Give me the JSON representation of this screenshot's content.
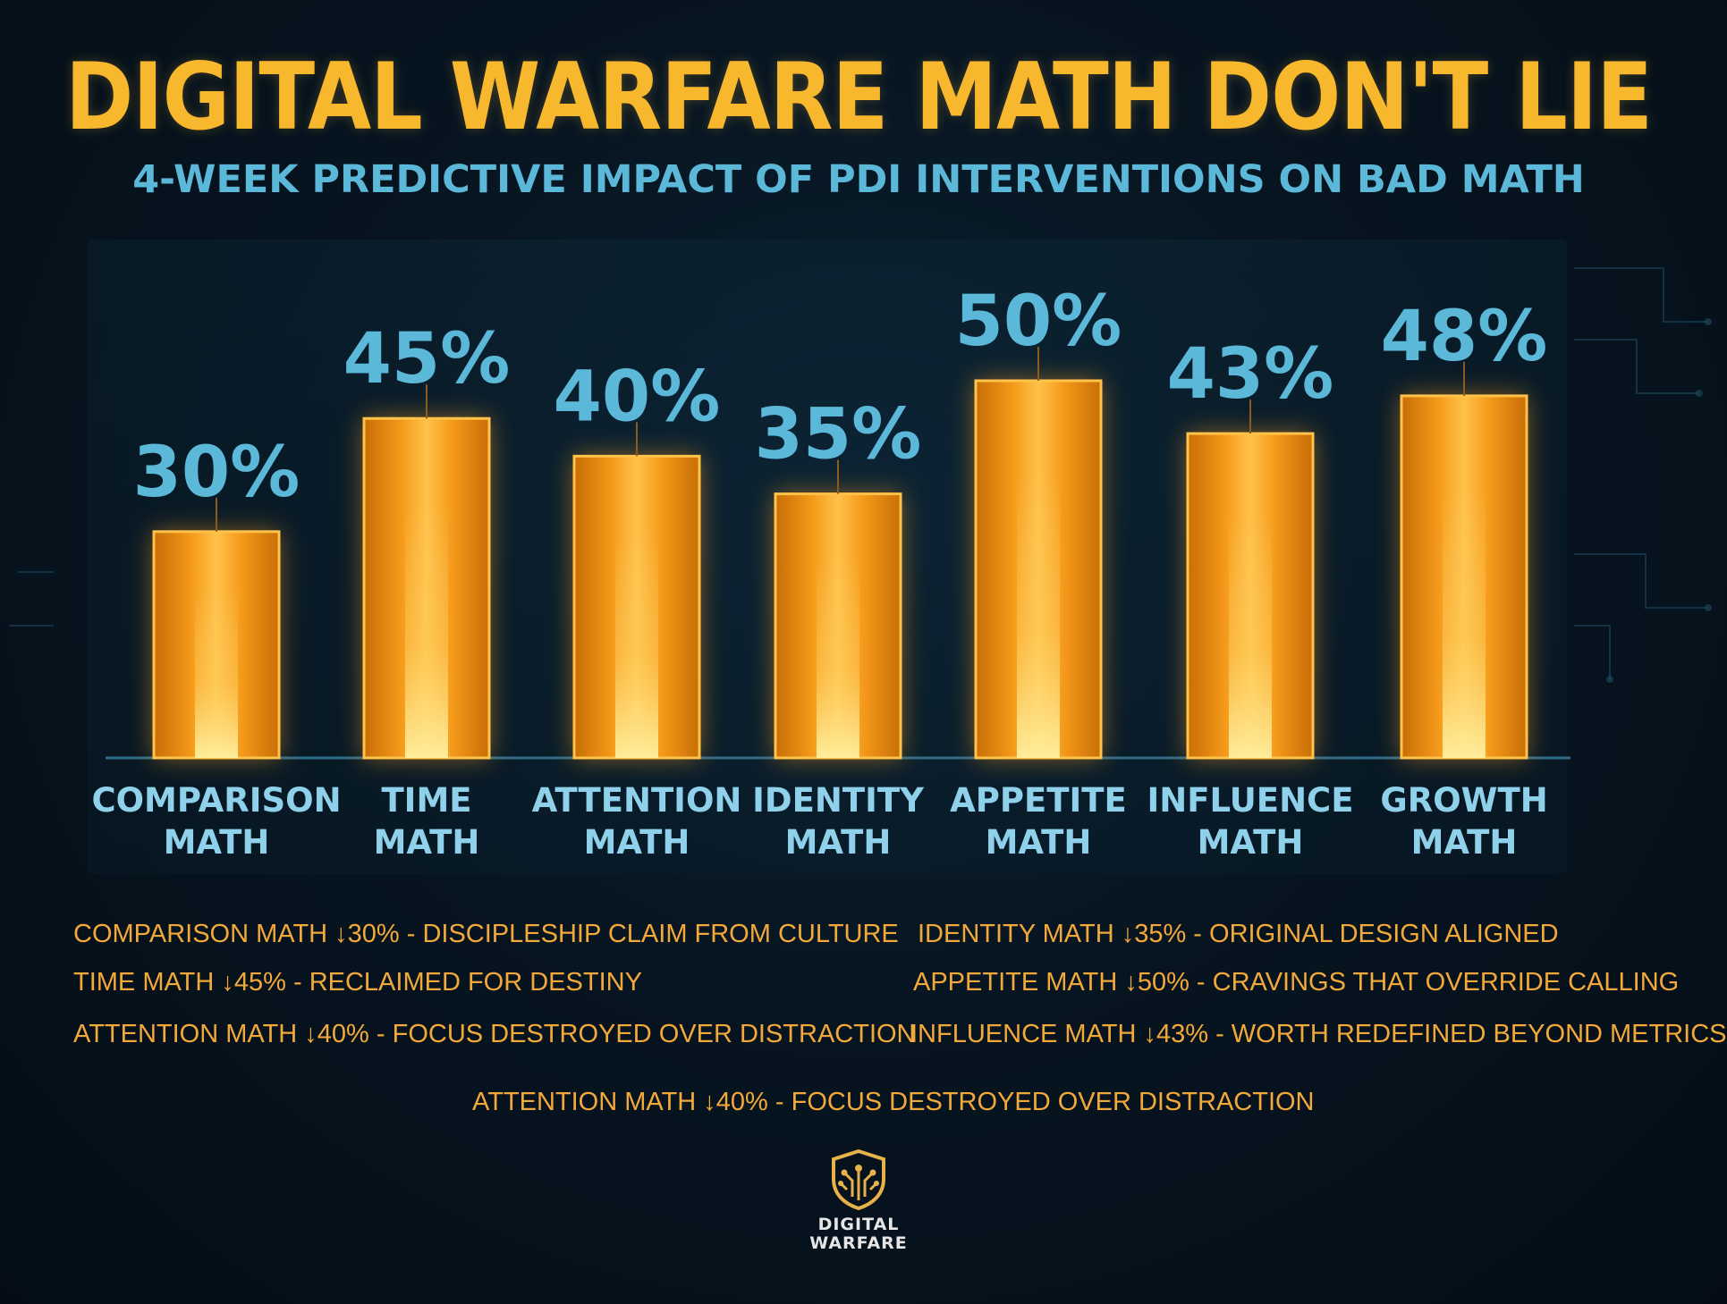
{
  "header": {
    "title": "DIGITAL WARFARE MATH DON'T LIE",
    "subtitle": "4-WEEK PREDICTIVE IMPACT OF PDI INTERVENTIONS ON BAD MATH"
  },
  "chart_data": {
    "type": "bar",
    "categories": [
      [
        "COMPARISON",
        "MATH"
      ],
      [
        "TIME",
        "MATH"
      ],
      [
        "ATTENTION",
        "MATH"
      ],
      [
        "IDENTITY",
        "MATH"
      ],
      [
        "APPETITE",
        "MATH"
      ],
      [
        "INFLUENCE",
        "MATH"
      ],
      [
        "GROWTH",
        "MATH"
      ]
    ],
    "values": [
      30,
      45,
      40,
      35,
      50,
      43,
      48
    ],
    "data_labels": [
      "30%",
      "45%",
      "40%",
      "35%",
      "50%",
      "43%",
      "48%"
    ],
    "unit": "%",
    "ylim": [
      0,
      60
    ],
    "grid": false,
    "legend": "none",
    "colors": {
      "bar": "#f5a01c",
      "bar_glow": "#ffd36a",
      "label": "#5cb8d8"
    }
  },
  "notes": [
    "COMPARISON MATH ↓30% - DISCIPLESHIP CLAIM FROM CULTURE",
    "IDENTITY MATH ↓35% - ORIGINAL DESIGN ALIGNED",
    "TIME MATH ↓45% - RECLAIMED FOR DESTINY",
    "APPETITE MATH ↓50% - CRAVINGS THAT OVERRIDE CALLING",
    "ATTENTION MATH ↓40% - FOCUS DESTROYED OVER DISTRACTION",
    "INFLUENCE MATH ↓43% - WORTH REDEFINED BEYOND METRICS",
    "ATTENTION MATH ↓40% - FOCUS DESTROYED OVER DISTRACTION"
  ],
  "logo": {
    "line1": "DIGITAL",
    "line2": "WARFARE",
    "mark": "shield-circuit-icon"
  }
}
